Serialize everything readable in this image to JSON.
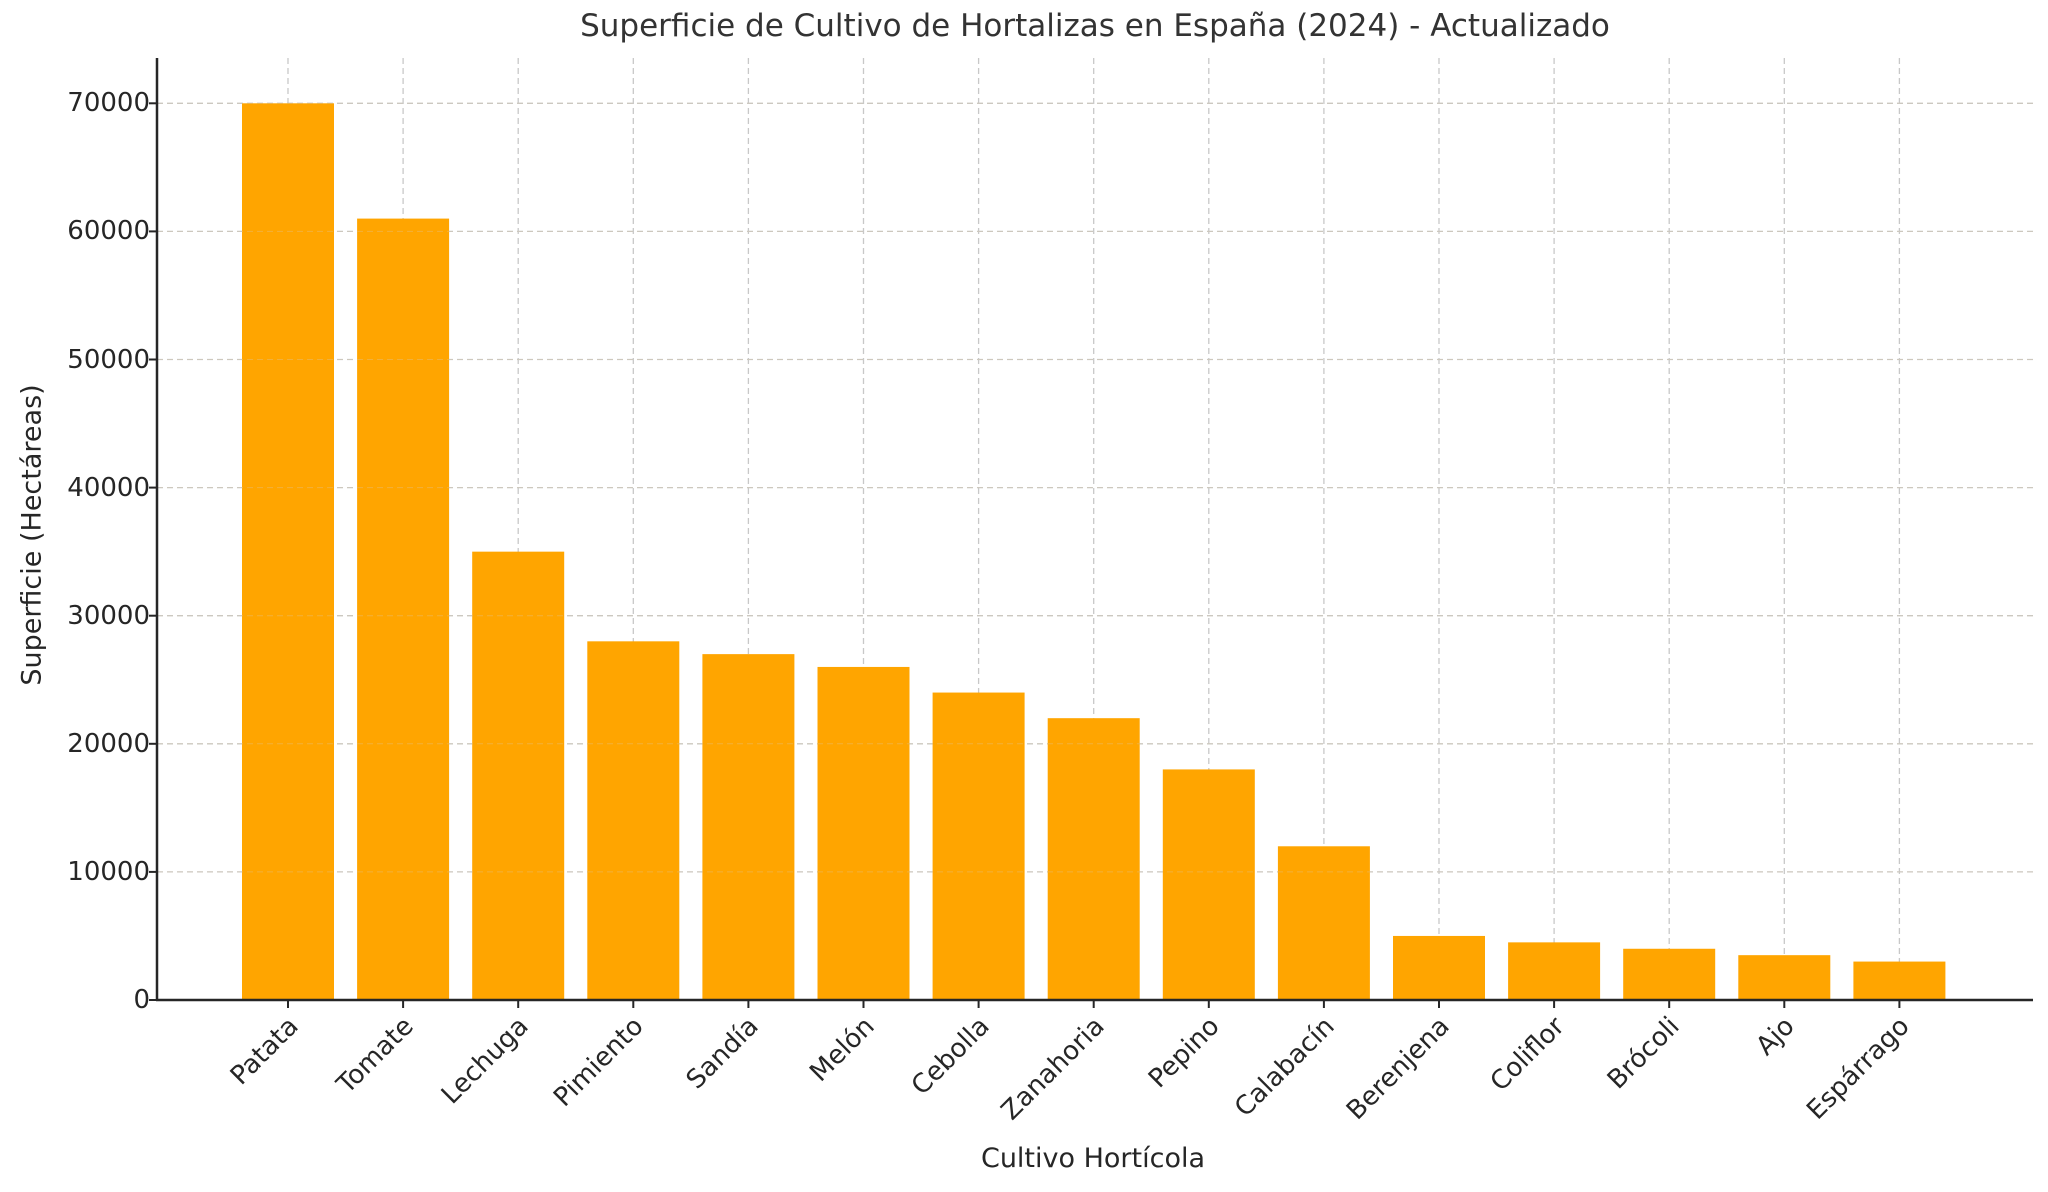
{
  "chart_data": {
    "type": "bar",
    "title": "Superficie de Cultivo de Hortalizas en España (2024) - Actualizado",
    "xlabel": "Cultivo Hortícola",
    "ylabel": "Superficie (Hectáreas)",
    "categories": [
      "Patata",
      "Tomate",
      "Lechuga",
      "Pimiento",
      "Sandía",
      "Melón",
      "Cebolla",
      "Zanahoria",
      "Pepino",
      "Calabacín",
      "Berenjena",
      "Coliflor",
      "Brócoli",
      "Ajo",
      "Espárrago"
    ],
    "values": [
      70000,
      61000,
      35000,
      28000,
      27000,
      26000,
      24000,
      22000,
      18000,
      12000,
      5000,
      4500,
      4000,
      3500,
      3000
    ],
    "yticks": [
      "0",
      "10000",
      "20000",
      "30000",
      "40000",
      "50000",
      "60000",
      "70000"
    ],
    "ylim": [
      0,
      73500
    ],
    "grid": true,
    "grid_style": "dashed",
    "bar_color": "#FFA500",
    "legend": null
  }
}
